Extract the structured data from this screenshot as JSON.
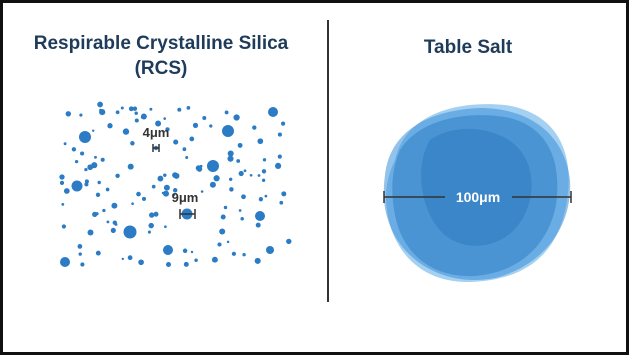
{
  "left_panel": {
    "title_line1": "Respirable Crystalline Silica",
    "title_line2": "(RCS)",
    "label_small": "4μm",
    "label_large": "9μm"
  },
  "right_panel": {
    "title": "Table Salt",
    "diameter_label": "100μm"
  },
  "colors": {
    "title": "#1f3b5a",
    "particle": "#2b7cc4",
    "measure_line": "#333333"
  }
}
